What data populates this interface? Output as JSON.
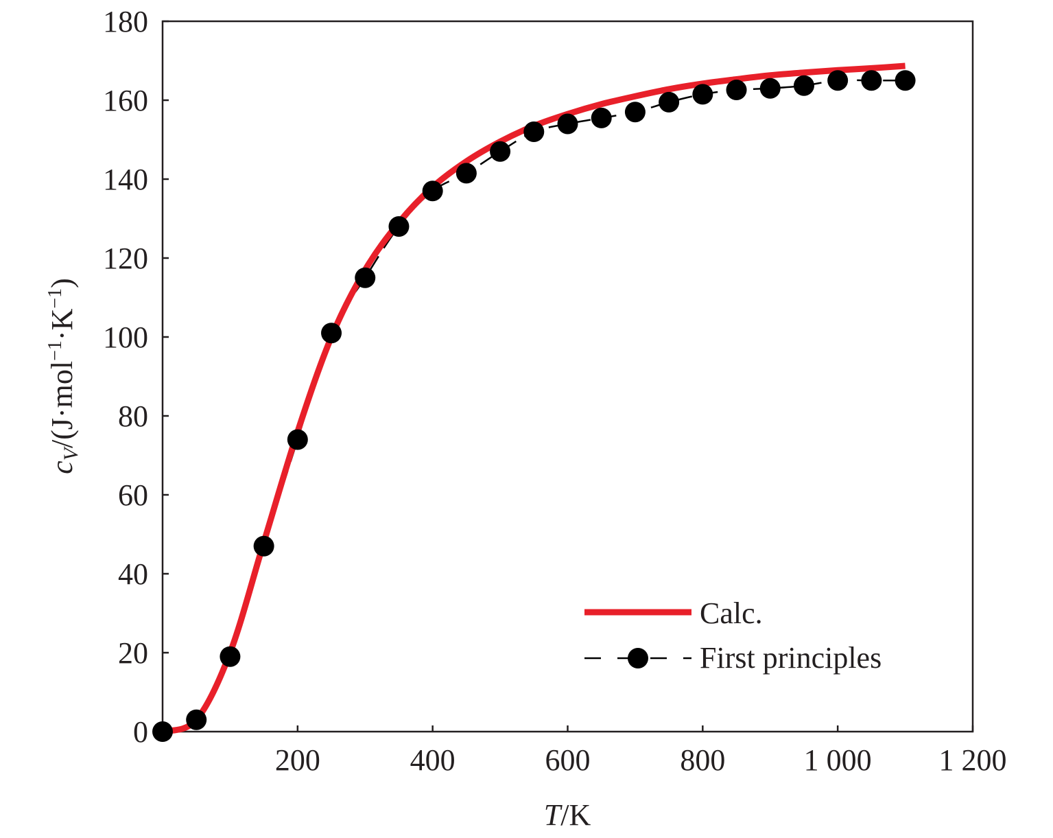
{
  "chart_data": {
    "type": "line",
    "xlabel": {
      "symbol": "T",
      "unit": "/K"
    },
    "ylabel": {
      "symbol": "c",
      "subscript": "V",
      "unit_a": "/(J·mol",
      "exp1": "−1",
      "unit_b": "·K",
      "exp2": "−1",
      "close": ")"
    },
    "xlim": [
      0,
      1200
    ],
    "ylim": [
      0,
      180
    ],
    "x_ticks": [
      200,
      400,
      600,
      800,
      1000,
      1200
    ],
    "x_tick_labels": [
      "200",
      "400",
      "600",
      "800",
      "1 000",
      "1 200"
    ],
    "y_ticks": [
      0,
      20,
      40,
      60,
      80,
      100,
      120,
      140,
      160,
      180
    ],
    "y_tick_labels": [
      "0",
      "20",
      "40",
      "60",
      "80",
      "100",
      "120",
      "140",
      "160",
      "180"
    ],
    "grid": false,
    "legend_placement": "bottom-right",
    "series": [
      {
        "name": "Calc.",
        "color": "#e8202a",
        "style": "solid-thick",
        "x": [
          0,
          50,
          100,
          150,
          200,
          250,
          300,
          350,
          400,
          450,
          500,
          550,
          600,
          650,
          700,
          750,
          800,
          850,
          900,
          950,
          1000,
          1050,
          1100
        ],
        "y": [
          0,
          3,
          20,
          48,
          76,
          100,
          117,
          129,
          138,
          144.5,
          149.5,
          153.5,
          156.5,
          159,
          161,
          162.8,
          164.2,
          165.3,
          166.3,
          167,
          167.6,
          168.1,
          168.7
        ]
      },
      {
        "name": "First principles",
        "color": "#000000",
        "style": "dashed-with-circles",
        "x": [
          0,
          50,
          100,
          150,
          200,
          250,
          300,
          350,
          400,
          450,
          500,
          550,
          600,
          650,
          700,
          750,
          800,
          850,
          900,
          950,
          1000,
          1050,
          1100
        ],
        "y": [
          0,
          3,
          19,
          47,
          74,
          101,
          115,
          128,
          137,
          141.5,
          147,
          152,
          154,
          155.5,
          157,
          159.5,
          161.5,
          162.6,
          163,
          163.7,
          165,
          165,
          165
        ]
      }
    ]
  }
}
